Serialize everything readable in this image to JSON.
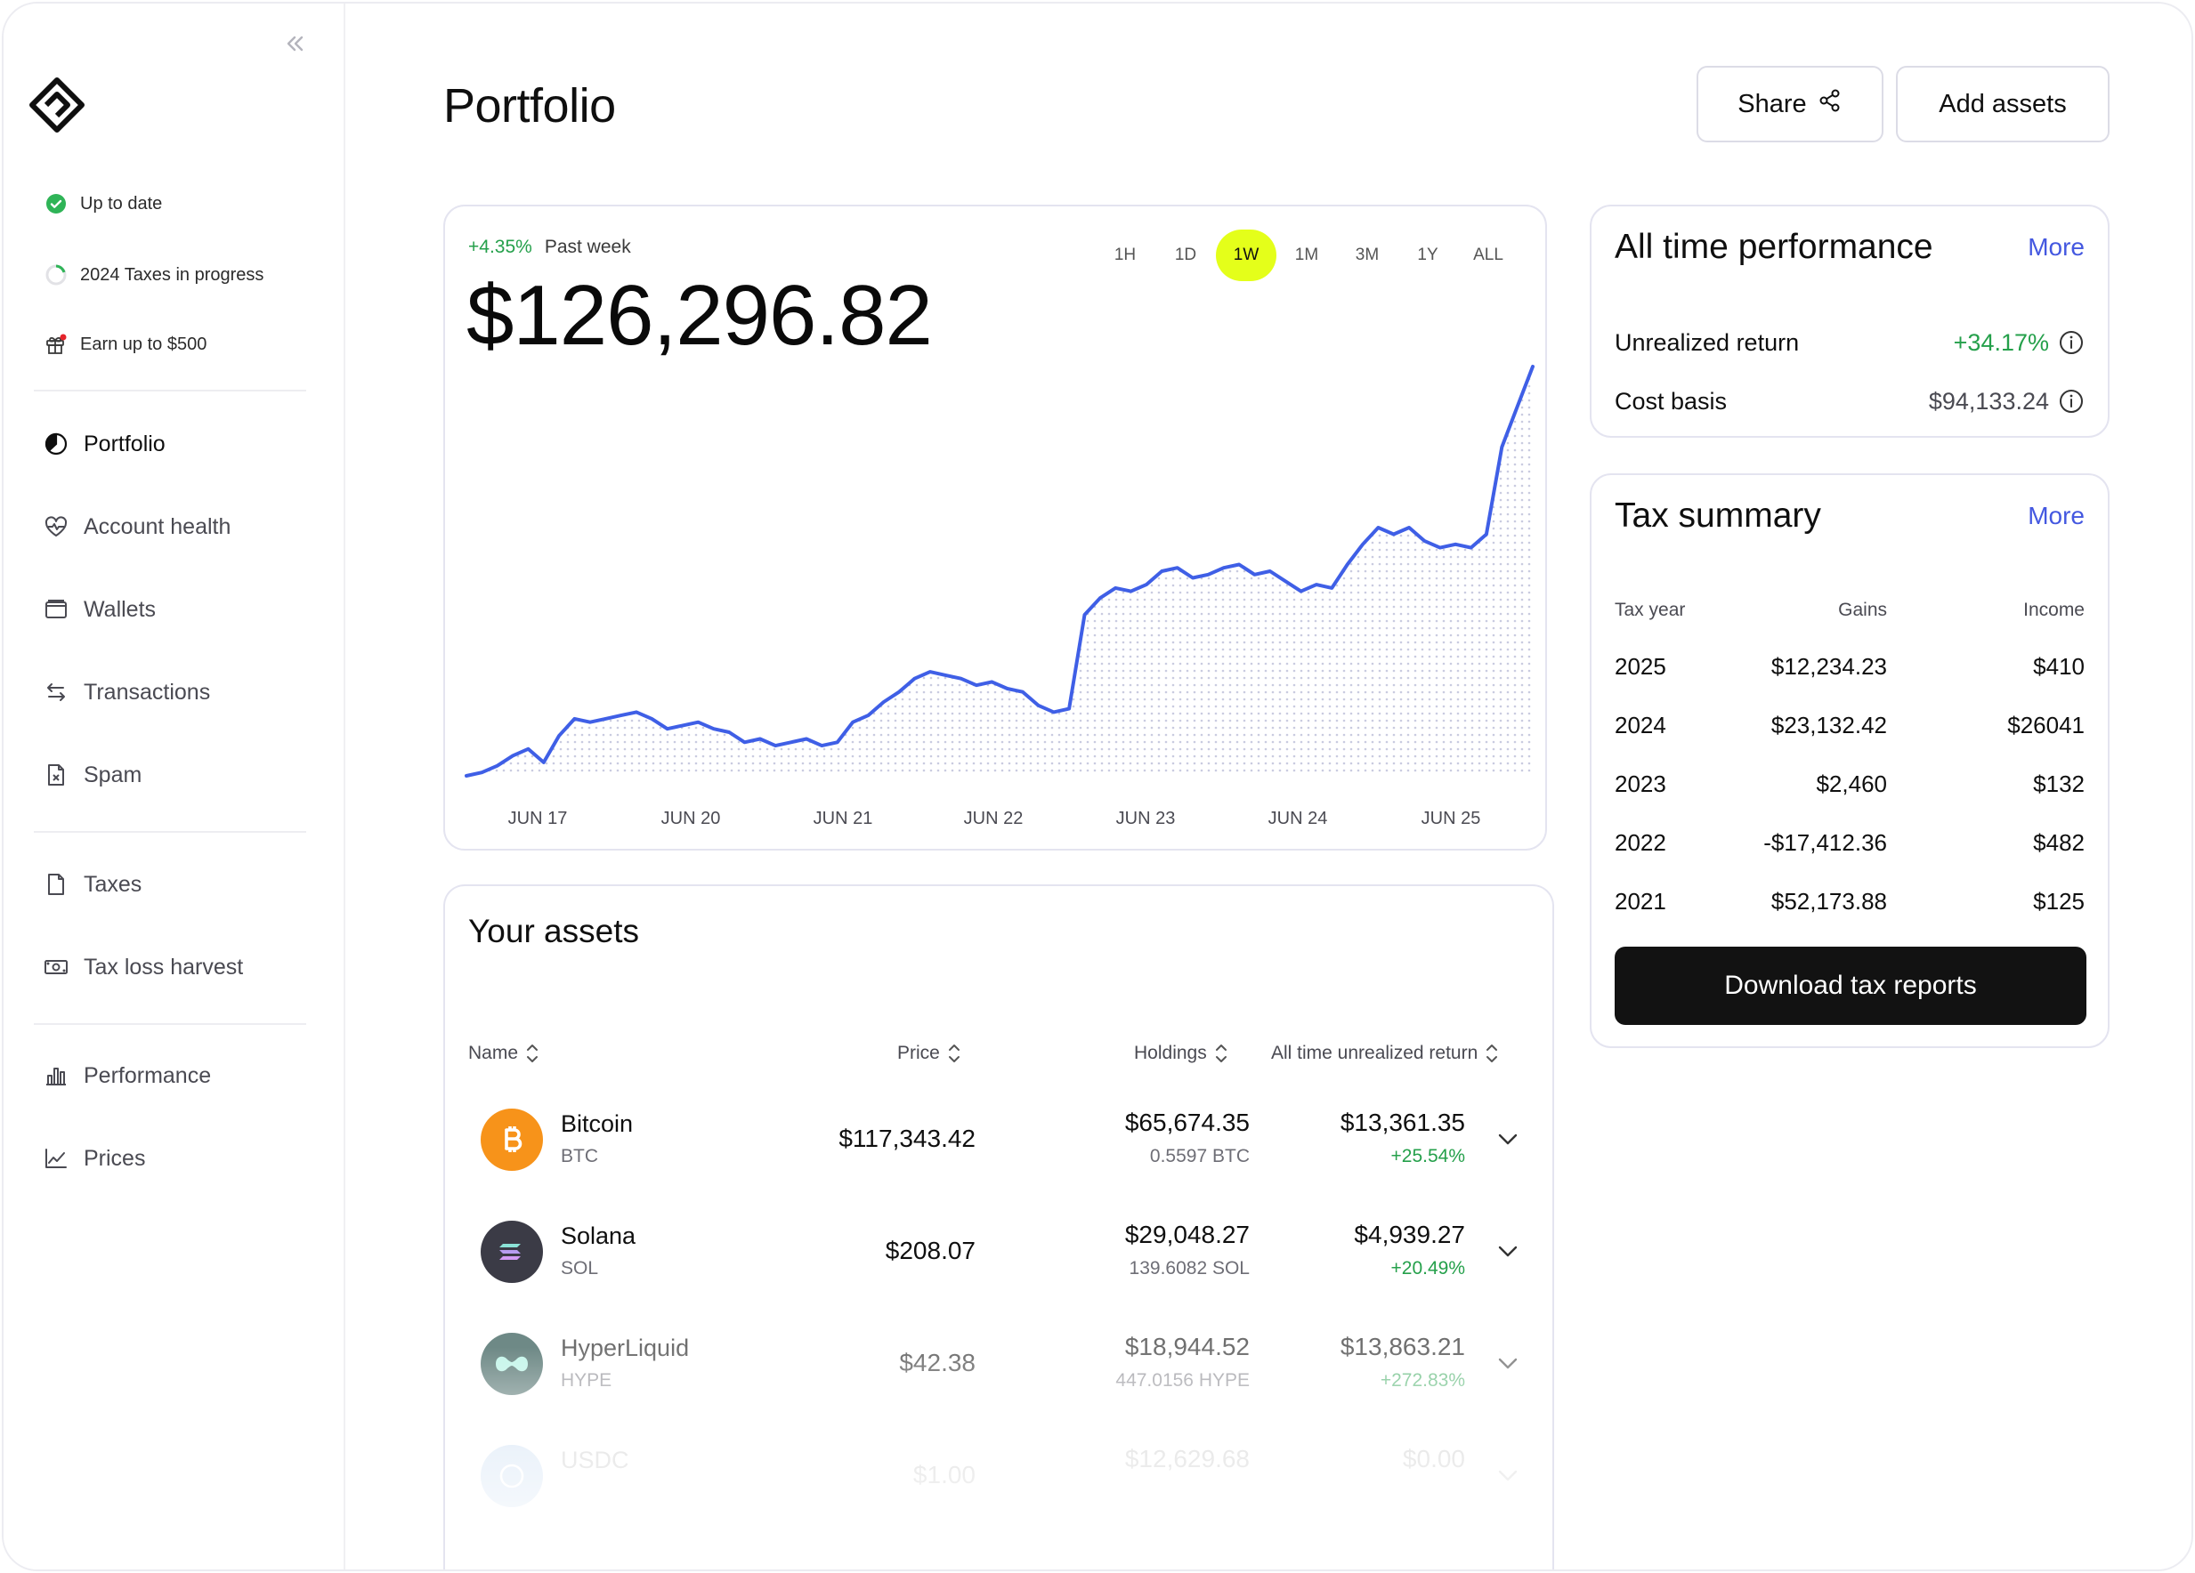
{
  "sidebar": {
    "collapse_icon": "double-chevron-left-icon",
    "status": [
      {
        "label": "Up to date",
        "icon": "check-circle-icon",
        "color": "#2fb457"
      },
      {
        "label": "2024 Taxes in progress",
        "icon": "progress-ring-icon"
      },
      {
        "label": "Earn up to $500",
        "icon": "gift-icon",
        "badge_color": "#e5232a"
      }
    ],
    "nav_group1": [
      {
        "label": "Portfolio",
        "icon": "pie-chart-icon",
        "active": true
      },
      {
        "label": "Account health",
        "icon": "heart-pulse-icon"
      },
      {
        "label": "Wallets",
        "icon": "wallet-icon"
      },
      {
        "label": "Transactions",
        "icon": "arrows-swap-icon"
      },
      {
        "label": "Spam",
        "icon": "spam-file-icon"
      }
    ],
    "nav_group2": [
      {
        "label": "Taxes",
        "icon": "document-icon"
      },
      {
        "label": "Tax loss harvest",
        "icon": "banknote-icon"
      }
    ],
    "nav_group3": [
      {
        "label": "Performance",
        "icon": "bar-chart-icon"
      },
      {
        "label": "Prices",
        "icon": "line-chart-icon"
      }
    ]
  },
  "header": {
    "title": "Portfolio",
    "share_label": "Share",
    "add_label": "Add assets"
  },
  "chart_card": {
    "change": "+4.35%",
    "period": "Past week",
    "value": "$126,296.82",
    "ranges": [
      "1H",
      "1D",
      "1W",
      "1M",
      "3M",
      "1Y",
      "ALL"
    ],
    "selected_range": "1W",
    "accent": "#e4ff1a",
    "line_color": "#3f5fe6"
  },
  "chart_data": {
    "type": "line",
    "title": "",
    "xlabel": "",
    "ylabel": "",
    "x_ticks": [
      "JUN 17",
      "JUN 20",
      "JUN 21",
      "JUN 22",
      "JUN 23",
      "JUN 24",
      "JUN 25"
    ],
    "grid": false,
    "series": [
      {
        "values": [
          100,
          101,
          103,
          106,
          108,
          104,
          112,
          117,
          116,
          117,
          118,
          119,
          117,
          114,
          115,
          116,
          114,
          113,
          110,
          111,
          109,
          110,
          111,
          109,
          110,
          116,
          118,
          122,
          125,
          129,
          131,
          130,
          129,
          127,
          128,
          126,
          125,
          121,
          119,
          120,
          148,
          153,
          156,
          155,
          157,
          161,
          162,
          159,
          160,
          162,
          163,
          160,
          161,
          158,
          155,
          157,
          156,
          163,
          169,
          174,
          172,
          174,
          170,
          168,
          169,
          168,
          172,
          198,
          210,
          222
        ]
      }
    ]
  },
  "assets": {
    "title": "Your assets",
    "columns": {
      "name": "Name",
      "price": "Price",
      "holdings": "Holdings",
      "return": "All time unrealized return"
    },
    "rows": [
      {
        "name": "Bitcoin",
        "symbol": "BTC",
        "price": "$117,343.42",
        "holdings": "$65,674.35",
        "holdings_sub": "0.5597 BTC",
        "return": "$13,361.35",
        "return_pct": "+25.54%",
        "icon": "bitcoin-icon",
        "color": "#f7931a"
      },
      {
        "name": "Solana",
        "symbol": "SOL",
        "price": "$208.07",
        "holdings": "$29,048.27",
        "holdings_sub": "139.6082 SOL",
        "return": "$4,939.27",
        "return_pct": "+20.49%",
        "icon": "solana-icon",
        "color": "#3b3b46"
      },
      {
        "name": "HyperLiquid",
        "symbol": "HYPE",
        "price": "$42.38",
        "holdings": "$18,944.52",
        "holdings_sub": "447.0156 HYPE",
        "return": "$13,863.21",
        "return_pct": "+272.83%",
        "icon": "hyperliquid-icon",
        "color": "#0f3c37"
      },
      {
        "name": "USDC",
        "symbol": "",
        "price": "$1.00",
        "holdings": "$12,629.68",
        "holdings_sub": "",
        "return": "$0.00",
        "return_pct": "",
        "icon": "usdc-icon",
        "color": "#2775ca"
      }
    ]
  },
  "performance": {
    "title": "All time performance",
    "more": "More",
    "unrealized_label": "Unrealized return",
    "unrealized_value": "+34.17%",
    "cost_label": "Cost basis",
    "cost_value": "$94,133.24"
  },
  "tax": {
    "title": "Tax summary",
    "more": "More",
    "headers": {
      "year": "Tax year",
      "gains": "Gains",
      "income": "Income"
    },
    "rows": [
      {
        "year": "2025",
        "gains": "$12,234.23",
        "income": "$410"
      },
      {
        "year": "2024",
        "gains": "$23,132.42",
        "income": "$26041"
      },
      {
        "year": "2023",
        "gains": "$2,460",
        "income": "$132"
      },
      {
        "year": "2022",
        "gains": "-$17,412.36",
        "income": "$482"
      },
      {
        "year": "2021",
        "gains": "$52,173.88",
        "income": "$125"
      }
    ],
    "download_label": "Download tax reports"
  }
}
